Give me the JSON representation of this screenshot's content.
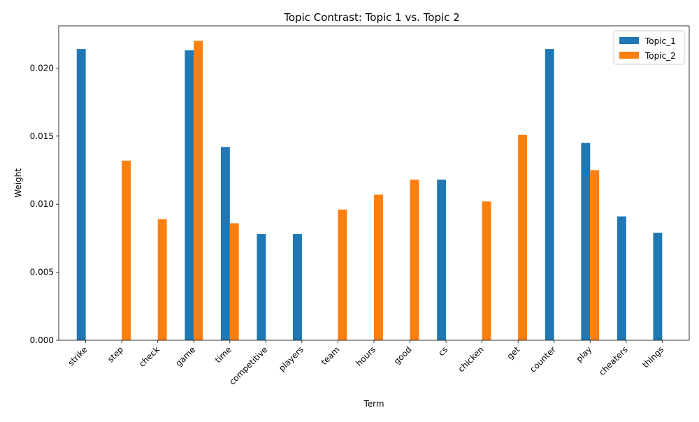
{
  "chart_data": {
    "type": "bar",
    "title": "Topic Contrast: Topic 1 vs. Topic 2",
    "xlabel": "Term",
    "ylabel": "Weight",
    "ylim": [
      0,
      0.0231
    ],
    "yticks": [
      "0.000",
      "0.005",
      "0.010",
      "0.015",
      "0.020"
    ],
    "ytick_values": [
      0,
      0.005,
      0.01,
      0.015,
      0.02
    ],
    "grid": false,
    "legend_position": "top-right",
    "categories": [
      "strike",
      "step",
      "check",
      "game",
      "time",
      "competitive",
      "players",
      "team",
      "hours",
      "good",
      "cs",
      "chicken",
      "get",
      "counter",
      "play",
      "cheaters",
      "things"
    ],
    "series": [
      {
        "name": "Topic_1",
        "color": "#1f77b4",
        "values": [
          0.0214,
          0,
          0,
          0.0213,
          0.0142,
          0.0078,
          0.0078,
          0,
          0,
          0,
          0.0118,
          0,
          0,
          0.0214,
          0.0145,
          0.0091,
          0.0079
        ]
      },
      {
        "name": "Topic_2",
        "color": "#ff7f0e",
        "values": [
          0,
          0.0132,
          0.0089,
          0.022,
          0.0086,
          0,
          0,
          0.0096,
          0.0107,
          0.0118,
          0,
          0.0102,
          0.0151,
          0,
          0.0125,
          0,
          0
        ]
      }
    ]
  }
}
